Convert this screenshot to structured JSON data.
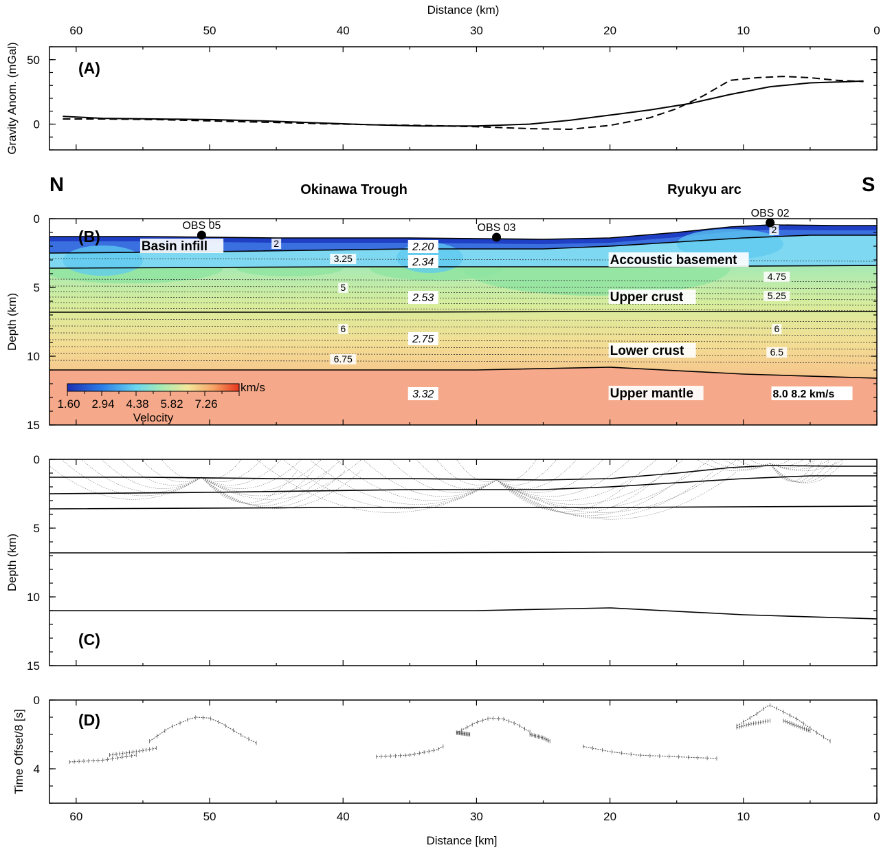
{
  "chart_data": [
    {
      "id": "A",
      "type": "line",
      "panel_label": "(A)",
      "xlabel": "Distance (km)",
      "ylabel": "Gravity Anom. (mGal)",
      "xlim": [
        62,
        0
      ],
      "ylim": [
        -20,
        60
      ],
      "xticks": [
        60,
        50,
        40,
        30,
        20,
        10,
        0
      ],
      "yticks": [
        0,
        50
      ],
      "series": [
        {
          "style": "solid",
          "x": [
            61,
            58,
            54,
            50,
            46,
            42,
            38,
            34,
            30,
            26,
            23,
            20,
            17,
            14,
            11,
            8,
            5,
            2,
            1
          ],
          "y": [
            6,
            4.5,
            4,
            3.5,
            2.5,
            1,
            -0.5,
            -1.5,
            -1.5,
            0,
            3,
            7,
            11,
            16,
            23,
            29,
            32,
            33,
            33.5
          ]
        },
        {
          "style": "dashed",
          "x": [
            61,
            58,
            54,
            50,
            46,
            42,
            38,
            34,
            30,
            26,
            23,
            20,
            17,
            15,
            13,
            11,
            9,
            7,
            5,
            3,
            1
          ],
          "y": [
            4,
            4,
            3.5,
            2.5,
            1.5,
            0.5,
            -0.5,
            -1,
            -2,
            -3.5,
            -4,
            -1,
            5,
            12,
            22,
            34,
            36,
            37,
            36,
            34,
            33
          ]
        }
      ]
    },
    {
      "id": "B",
      "type": "heatmap",
      "panel_label": "(B)",
      "ylabel": "Depth (km)",
      "xlim": [
        62,
        0
      ],
      "ylim": [
        15,
        0
      ],
      "yticks": [
        0,
        5,
        10,
        15
      ],
      "colorbar": {
        "unit": "km/s",
        "title": "Velocity",
        "ticks": [
          "1.60",
          "2.94",
          "4.38",
          "5.82",
          "7.26"
        ]
      },
      "region_labels": {
        "north": "N",
        "south": "S",
        "trough": "Okinawa Trough",
        "arc": "Ryukyu arc"
      },
      "layers": [
        {
          "label": "Basin infill",
          "x": 55,
          "depth": 2.0
        },
        {
          "label": "Accoustic basement",
          "x": 20,
          "depth": 3.0
        },
        {
          "label": "Upper crust",
          "x": 20,
          "depth": 5.7
        },
        {
          "label": "Lower crust",
          "x": 20,
          "depth": 9.6
        },
        {
          "label": "Upper mantle",
          "x": 20,
          "depth": 12.7
        }
      ],
      "mantle_velocity_label": "8.0   8.2 km/s",
      "densities": [
        {
          "value": "2.20",
          "x": 34,
          "depth": 2.0
        },
        {
          "value": "2.34",
          "x": 34,
          "depth": 3.1
        },
        {
          "value": "2.53",
          "x": 34,
          "depth": 5.7
        },
        {
          "value": "2.75",
          "x": 34,
          "depth": 8.7
        },
        {
          "value": "3.32",
          "x": 34,
          "depth": 12.7
        }
      ],
      "isovelocity_labels": [
        {
          "value": "2",
          "x": 45,
          "depth": 1.8
        },
        {
          "value": "3.25",
          "x": 40,
          "depth": 2.9
        },
        {
          "value": "5",
          "x": 40,
          "depth": 5.0
        },
        {
          "value": "6",
          "x": 40,
          "depth": 8.0
        },
        {
          "value": "6.75",
          "x": 40,
          "depth": 10.2
        },
        {
          "value": "2",
          "x": 7.7,
          "depth": 0.8
        },
        {
          "value": "4.75",
          "x": 7.5,
          "depth": 4.2
        },
        {
          "value": "5.25",
          "x": 7.5,
          "depth": 5.6
        },
        {
          "value": "6",
          "x": 7.5,
          "depth": 8.0
        },
        {
          "value": "6.5",
          "x": 7.5,
          "depth": 9.7
        }
      ],
      "stations": [
        {
          "label": "OBS 05",
          "x": 50.6,
          "depth": 1.2
        },
        {
          "label": "OBS 03",
          "x": 28.5,
          "depth": 1.35
        },
        {
          "label": "OBS 02",
          "x": 8,
          "depth": 0.3
        }
      ],
      "boundaries": {
        "seafloor": {
          "x": [
            62,
            55,
            45,
            35,
            25,
            20,
            15,
            11,
            8,
            3,
            0
          ],
          "y": [
            1.3,
            1.3,
            1.4,
            1.4,
            1.5,
            1.4,
            1.0,
            0.6,
            0.45,
            0.5,
            0.5
          ]
        },
        "basin_base": {
          "x": [
            62,
            50,
            35,
            25,
            20,
            15,
            10,
            5,
            0
          ],
          "y": [
            2.5,
            2.4,
            2.2,
            2.2,
            2.0,
            1.7,
            1.4,
            1.2,
            1.2
          ]
        },
        "basement_top": {
          "x": [
            62,
            40,
            20,
            0
          ],
          "y": [
            3.6,
            3.5,
            3.5,
            3.4
          ]
        },
        "lower_crust_top": {
          "x": [
            62,
            40,
            20,
            0
          ],
          "y": [
            6.8,
            6.8,
            6.75,
            6.75
          ]
        },
        "moho": {
          "x": [
            62,
            45,
            30,
            20,
            10,
            0
          ],
          "y": [
            11.0,
            11.0,
            11.0,
            10.8,
            11.3,
            11.6
          ]
        }
      },
      "isovelocity_depths": [
        2.9,
        4.4,
        4.9,
        5.3,
        5.7,
        6.1,
        6.5,
        7.3,
        7.8,
        8.3,
        8.8,
        9.3,
        9.8,
        10.3
      ]
    },
    {
      "id": "C",
      "type": "line",
      "panel_label": "(C)",
      "ylabel": "Depth (km)",
      "xlim": [
        62,
        0
      ],
      "ylim": [
        15,
        0
      ],
      "yticks": [
        0,
        5,
        10,
        15
      ],
      "ray_fans": [
        {
          "x": 50.6,
          "depth": 1.3,
          "spreads": [
            3,
            4.5,
            6,
            7.5,
            9,
            10.5,
            12
          ],
          "max_depth": 4.1
        },
        {
          "x": 28.5,
          "depth": 1.5,
          "spreads": [
            3,
            4.5,
            6,
            8,
            10,
            12,
            14,
            16,
            18
          ],
          "max_depth": 5.5
        },
        {
          "x": 8,
          "depth": 0.3,
          "spreads": [
            1.5,
            2.5,
            3.5,
            4.5,
            5.5
          ],
          "max_depth": 1.2
        }
      ]
    },
    {
      "id": "D",
      "type": "scatter",
      "panel_label": "(D)",
      "xlabel": "Distance [km]",
      "ylabel": "Time  Offset/8 [s]",
      "xlim": [
        62,
        0
      ],
      "ylim": [
        6,
        0
      ],
      "yticks": [
        0,
        4
      ],
      "xticks": [
        60,
        50,
        40,
        30,
        20,
        10,
        0
      ],
      "travel_time_curves": [
        {
          "x": [
            54.5,
            53,
            51.5,
            51,
            50,
            49,
            47.5,
            46.5
          ],
          "t": [
            2.4,
            1.6,
            1.1,
            1.0,
            1.05,
            1.4,
            2.1,
            2.5
          ]
        },
        {
          "x": [
            60.5,
            58,
            55.5
          ],
          "t": [
            3.6,
            3.5,
            3.2
          ]
        },
        {
          "x": [
            57.5,
            55.5,
            54
          ],
          "t": [
            3.2,
            3.0,
            2.8
          ]
        },
        {
          "x": [
            31.5,
            30,
            29,
            28,
            27,
            26
          ],
          "t": [
            1.9,
            1.3,
            1.05,
            1.1,
            1.4,
            1.85
          ]
        },
        {
          "x": [
            37.5,
            35,
            33,
            32.5
          ],
          "t": [
            3.3,
            3.2,
            2.9,
            2.7
          ]
        },
        {
          "x": [
            26,
            25,
            24.5
          ],
          "t": [
            2.0,
            2.2,
            2.4
          ]
        },
        {
          "x": [
            31.5,
            30.5
          ],
          "t": [
            1.9,
            2.0
          ]
        },
        {
          "x": [
            22,
            20,
            18,
            15,
            12
          ],
          "t": [
            2.7,
            3.0,
            3.2,
            3.3,
            3.4
          ]
        },
        {
          "x": [
            10.5,
            9,
            8.3,
            8,
            7.6,
            6,
            4.5,
            3.5
          ],
          "t": [
            1.5,
            0.8,
            0.4,
            0.3,
            0.45,
            1.1,
            1.9,
            2.4
          ]
        },
        {
          "x": [
            10.5,
            9.5,
            8
          ],
          "t": [
            1.6,
            1.4,
            1.2
          ]
        },
        {
          "x": [
            7,
            6,
            5
          ],
          "t": [
            1.2,
            1.5,
            1.8
          ]
        }
      ]
    }
  ]
}
